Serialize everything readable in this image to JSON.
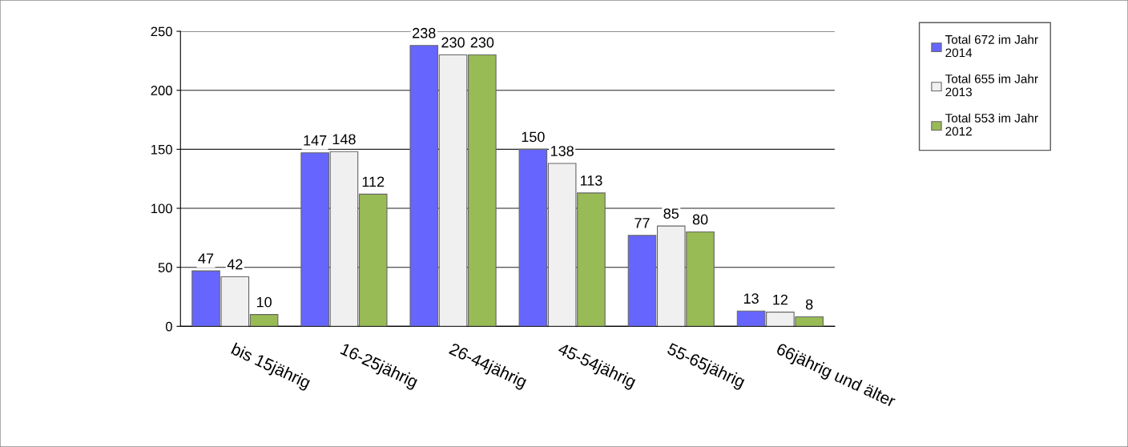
{
  "chart_data": {
    "type": "bar",
    "categories": [
      "bis 15jährig",
      "16-25jährig",
      "26-44jährig",
      "45-54jährig",
      "55-65jährig",
      "66jährig und älter"
    ],
    "series": [
      {
        "name": "Total 672 im Jahr 2014",
        "color": "#6666ff",
        "values": [
          47,
          147,
          238,
          150,
          77,
          13
        ]
      },
      {
        "name": "Total 655 im Jahr 2013",
        "color": "#f0f0f0",
        "values": [
          42,
          148,
          230,
          138,
          85,
          12
        ]
      },
      {
        "name": "Total 553 im Jahr 2012",
        "color": "#99bb55",
        "values": [
          10,
          112,
          230,
          113,
          80,
          8
        ]
      }
    ],
    "ylim": [
      0,
      250
    ],
    "yticks": [
      0,
      50,
      100,
      150,
      200,
      250
    ],
    "grid": "y",
    "legend": "right",
    "data_labels": true
  }
}
